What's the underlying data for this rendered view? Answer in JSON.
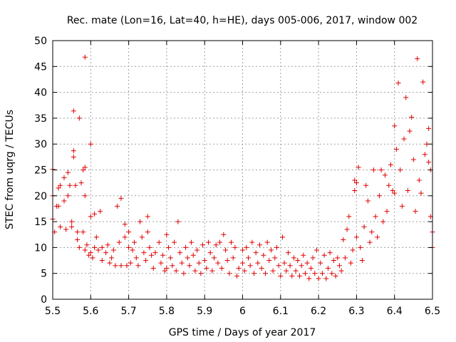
{
  "chart_data": {
    "type": "scatter",
    "title": "Rec. mate (Lon=16, Lat=40, h=HE), days 005-006, 2017, window 002",
    "xlabel": "GPS time / Days of year 2017",
    "ylabel": "STEC from uqrg / TECUs",
    "xlim": [
      5.5,
      6.5
    ],
    "ylim": [
      0,
      50
    ],
    "x_ticks": [
      5.5,
      5.6,
      5.7,
      5.8,
      5.9,
      6.0,
      6.1,
      6.2,
      6.3,
      6.4,
      6.5
    ],
    "x_tick_labels": [
      "5.5",
      "5.6",
      "5.7",
      "5.8",
      "5.9",
      "6",
      "6.1",
      "6.2",
      "6.3",
      "6.4",
      "6.5"
    ],
    "y_ticks": [
      0,
      5,
      10,
      15,
      20,
      25,
      30,
      35,
      40,
      45,
      50
    ],
    "y_tick_labels": [
      "0",
      "5",
      "10",
      "15",
      "20",
      "25",
      "30",
      "35",
      "40",
      "45",
      "50"
    ],
    "grid": true,
    "marker": "+",
    "color": "#e00000",
    "series": [
      {
        "name": "STEC",
        "points": [
          [
            5.5,
            25.1
          ],
          [
            5.5,
            20
          ],
          [
            5.5,
            15.5
          ],
          [
            5.505,
            13
          ],
          [
            5.51,
            18
          ],
          [
            5.515,
            21.5
          ],
          [
            5.515,
            18
          ],
          [
            5.52,
            14
          ],
          [
            5.52,
            22
          ],
          [
            5.53,
            23.5
          ],
          [
            5.53,
            19
          ],
          [
            5.535,
            13.5
          ],
          [
            5.54,
            24.5
          ],
          [
            5.54,
            20
          ],
          [
            5.545,
            22
          ],
          [
            5.55,
            14
          ],
          [
            5.55,
            15
          ],
          [
            5.555,
            36.4
          ],
          [
            5.555,
            28.7
          ],
          [
            5.555,
            27.5
          ],
          [
            5.56,
            22
          ],
          [
            5.565,
            11.5
          ],
          [
            5.565,
            13
          ],
          [
            5.57,
            35
          ],
          [
            5.57,
            10
          ],
          [
            5.575,
            22.5
          ],
          [
            5.58,
            13
          ],
          [
            5.58,
            25
          ],
          [
            5.585,
            46.8
          ],
          [
            5.585,
            20
          ],
          [
            5.585,
            25.5
          ],
          [
            5.585,
            9.5
          ],
          [
            5.59,
            10.5
          ],
          [
            5.595,
            8.5
          ],
          [
            5.6,
            30
          ],
          [
            5.6,
            16
          ],
          [
            5.6,
            9
          ],
          [
            5.605,
            8
          ],
          [
            5.61,
            10
          ],
          [
            5.61,
            16.5
          ],
          [
            5.615,
            12
          ],
          [
            5.62,
            9.5
          ],
          [
            5.625,
            17
          ],
          [
            5.63,
            10
          ],
          [
            5.63,
            7.5
          ],
          [
            5.64,
            9
          ],
          [
            5.645,
            10.5
          ],
          [
            5.65,
            7
          ],
          [
            5.655,
            8
          ],
          [
            5.66,
            9.5
          ],
          [
            5.665,
            6.5
          ],
          [
            5.67,
            18
          ],
          [
            5.675,
            11
          ],
          [
            5.68,
            6.5
          ],
          [
            5.68,
            19.5
          ],
          [
            5.69,
            14.5
          ],
          [
            5.69,
            12
          ],
          [
            5.695,
            6.5
          ],
          [
            5.7,
            10
          ],
          [
            5.7,
            13
          ],
          [
            5.705,
            7
          ],
          [
            5.71,
            9.5
          ],
          [
            5.715,
            11
          ],
          [
            5.72,
            8
          ],
          [
            5.725,
            6.5
          ],
          [
            5.73,
            15
          ],
          [
            5.735,
            12
          ],
          [
            5.74,
            9
          ],
          [
            5.745,
            7.5
          ],
          [
            5.75,
            16
          ],
          [
            5.75,
            13
          ],
          [
            5.755,
            10
          ],
          [
            5.76,
            8.5
          ],
          [
            5.765,
            6
          ],
          [
            5.77,
            9
          ],
          [
            5.78,
            11
          ],
          [
            5.785,
            7
          ],
          [
            5.79,
            8.5
          ],
          [
            5.795,
            5.5
          ],
          [
            5.8,
            12.5
          ],
          [
            5.8,
            6
          ],
          [
            5.805,
            10
          ],
          [
            5.81,
            8
          ],
          [
            5.815,
            6.5
          ],
          [
            5.82,
            11
          ],
          [
            5.825,
            5.5
          ],
          [
            5.83,
            15
          ],
          [
            5.835,
            9
          ],
          [
            5.84,
            7
          ],
          [
            5.845,
            5
          ],
          [
            5.85,
            10
          ],
          [
            5.855,
            8
          ],
          [
            5.86,
            6.5
          ],
          [
            5.865,
            11
          ],
          [
            5.87,
            8.5
          ],
          [
            5.875,
            5.5
          ],
          [
            5.88,
            9.5
          ],
          [
            5.885,
            7
          ],
          [
            5.89,
            5
          ],
          [
            5.895,
            10.5
          ],
          [
            5.9,
            7.5
          ],
          [
            5.905,
            6
          ],
          [
            5.91,
            11
          ],
          [
            5.915,
            9
          ],
          [
            5.92,
            5.5
          ],
          [
            5.925,
            8
          ],
          [
            5.93,
            10.5
          ],
          [
            5.935,
            7
          ],
          [
            5.94,
            11
          ],
          [
            5.945,
            6
          ],
          [
            5.95,
            12.5
          ],
          [
            5.955,
            9.5
          ],
          [
            5.96,
            7.5
          ],
          [
            5.965,
            5
          ],
          [
            5.97,
            11
          ],
          [
            5.975,
            8
          ],
          [
            5.98,
            10
          ],
          [
            5.985,
            4.5
          ],
          [
            5.99,
            6
          ],
          [
            6.0,
            7
          ],
          [
            6.0,
            9.5
          ],
          [
            6.005,
            5.5
          ],
          [
            6.01,
            10
          ],
          [
            6.015,
            8
          ],
          [
            6.02,
            6.5
          ],
          [
            6.025,
            11
          ],
          [
            6.03,
            5
          ],
          [
            6.035,
            9
          ],
          [
            6.04,
            7
          ],
          [
            6.045,
            10.5
          ],
          [
            6.05,
            6
          ],
          [
            6.055,
            8.5
          ],
          [
            6.06,
            5
          ],
          [
            6.065,
            11
          ],
          [
            6.07,
            7.5
          ],
          [
            6.075,
            9.5
          ],
          [
            6.08,
            5.5
          ],
          [
            6.085,
            8
          ],
          [
            6.09,
            10
          ],
          [
            6.095,
            6.5
          ],
          [
            6.1,
            4.5
          ],
          [
            6.105,
            12
          ],
          [
            6.11,
            7
          ],
          [
            6.115,
            5.5
          ],
          [
            6.12,
            9
          ],
          [
            6.125,
            6.5
          ],
          [
            6.13,
            4.5
          ],
          [
            6.135,
            8
          ],
          [
            6.14,
            5.5
          ],
          [
            6.145,
            7.5
          ],
          [
            6.15,
            4.5
          ],
          [
            6.155,
            6.5
          ],
          [
            6.16,
            8.5
          ],
          [
            6.165,
            5
          ],
          [
            6.17,
            7
          ],
          [
            6.175,
            4
          ],
          [
            6.18,
            6
          ],
          [
            6.185,
            8
          ],
          [
            6.19,
            5
          ],
          [
            6.195,
            9.5
          ],
          [
            6.2,
            4
          ],
          [
            6.205,
            7
          ],
          [
            6.21,
            5
          ],
          [
            6.215,
            8.5
          ],
          [
            6.22,
            4
          ],
          [
            6.225,
            6
          ],
          [
            6.23,
            9
          ],
          [
            6.235,
            5
          ],
          [
            6.24,
            7.5
          ],
          [
            6.245,
            4.5
          ],
          [
            6.25,
            8
          ],
          [
            6.255,
            6.5
          ],
          [
            6.26,
            5.5
          ],
          [
            6.265,
            11.5
          ],
          [
            6.27,
            8
          ],
          [
            6.275,
            13.5
          ],
          [
            6.28,
            16
          ],
          [
            6.285,
            7
          ],
          [
            6.29,
            9.5
          ],
          [
            6.295,
            23
          ],
          [
            6.295,
            21
          ],
          [
            6.3,
            22.5
          ],
          [
            6.3,
            12
          ],
          [
            6.305,
            25.5
          ],
          [
            6.31,
            10
          ],
          [
            6.315,
            7.5
          ],
          [
            6.32,
            14
          ],
          [
            6.325,
            22
          ],
          [
            6.33,
            19
          ],
          [
            6.335,
            11
          ],
          [
            6.34,
            13
          ],
          [
            6.345,
            25
          ],
          [
            6.35,
            16
          ],
          [
            6.355,
            12
          ],
          [
            6.36,
            20
          ],
          [
            6.365,
            25
          ],
          [
            6.37,
            15
          ],
          [
            6.375,
            24
          ],
          [
            6.38,
            17
          ],
          [
            6.385,
            22
          ],
          [
            6.39,
            26
          ],
          [
            6.395,
            21
          ],
          [
            6.4,
            33.5
          ],
          [
            6.4,
            20.5
          ],
          [
            6.405,
            29
          ],
          [
            6.41,
            41.8
          ],
          [
            6.415,
            25
          ],
          [
            6.42,
            18
          ],
          [
            6.425,
            31
          ],
          [
            6.43,
            39
          ],
          [
            6.435,
            21
          ],
          [
            6.44,
            32.5
          ],
          [
            6.445,
            35.2
          ],
          [
            6.45,
            27
          ],
          [
            6.455,
            17
          ],
          [
            6.46,
            46.5
          ],
          [
            6.465,
            23
          ],
          [
            6.47,
            20.5
          ],
          [
            6.475,
            42
          ],
          [
            6.48,
            28
          ],
          [
            6.485,
            30
          ],
          [
            6.49,
            33
          ],
          [
            6.49,
            26.5
          ],
          [
            6.495,
            25
          ],
          [
            6.5,
            13
          ],
          [
            6.5,
            10
          ],
          [
            6.495,
            16
          ]
        ]
      }
    ]
  }
}
